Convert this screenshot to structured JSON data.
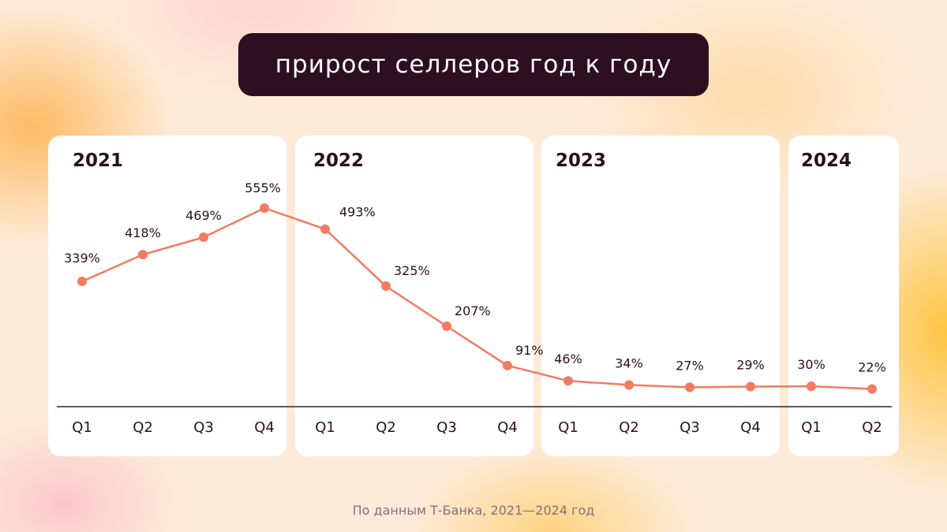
{
  "title": "прирост селлеров год к году",
  "source": "По данным Т-Банка, 2021—2024 год",
  "colors": {
    "title_bg": "#2e0f22",
    "title_text": "#ffffff",
    "line": "#f27b61",
    "axis": "#3a1a2c",
    "text": "#2b0f1f"
  },
  "years": [
    "2021",
    "2022",
    "2023",
    "2024"
  ],
  "chart_data": {
    "type": "line",
    "categories": [
      "Q1",
      "Q2",
      "Q3",
      "Q4",
      "Q1",
      "Q2",
      "Q3",
      "Q4",
      "Q1",
      "Q2",
      "Q3",
      "Q4",
      "Q1",
      "Q2"
    ],
    "values": [
      339,
      418,
      469,
      555,
      493,
      325,
      207,
      91,
      46,
      34,
      27,
      29,
      30,
      22
    ],
    "data_labels": [
      "339%",
      "418%",
      "469%",
      "555%",
      "493%",
      "325%",
      "207%",
      "91%",
      "46%",
      "34%",
      "27%",
      "29%",
      "30%",
      "22%"
    ],
    "ylim": [
      0,
      555
    ],
    "grid": false,
    "legend": "none"
  }
}
